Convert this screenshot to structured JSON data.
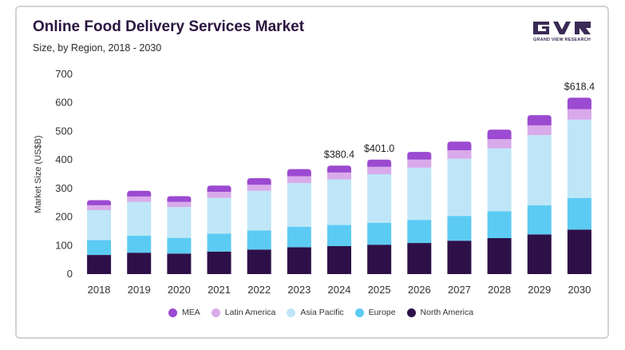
{
  "header": {
    "title": "Online Food Delivery Services Market",
    "subtitle": "Size, by Region, 2018 - 2030"
  },
  "logo": {
    "text": "GRAND VIEW RESEARCH"
  },
  "chart_data": {
    "type": "bar",
    "stacked": true,
    "categories": [
      "2018",
      "2019",
      "2020",
      "2021",
      "2022",
      "2023",
      "2024",
      "2025",
      "2026",
      "2027",
      "2028",
      "2029",
      "2030"
    ],
    "ylabel": "Market Size (US$B)",
    "xlabel": "",
    "ylim": [
      0,
      700
    ],
    "yticks": [
      0,
      100,
      200,
      300,
      400,
      500,
      600,
      700
    ],
    "grid": false,
    "legend_position": "bottom",
    "series": [
      {
        "name": "North America",
        "color": "#2e1048",
        "values": [
          67,
          75,
          72,
          79,
          86,
          94,
          98,
          103,
          109,
          117,
          126,
          139,
          156
        ]
      },
      {
        "name": "Europe",
        "color": "#5ccbf3",
        "values": [
          52,
          60,
          55,
          63,
          67,
          72,
          74,
          77,
          81,
          87,
          94,
          102,
          111
        ]
      },
      {
        "name": "Asia Pacific",
        "color": "#bfe6f8",
        "values": [
          105,
          118,
          108,
          125,
          139,
          153,
          160,
          170,
          183,
          200,
          221,
          246,
          274
        ]
      },
      {
        "name": "Latin America",
        "color": "#d9aaea",
        "values": [
          17,
          19,
          18,
          21,
          21,
          24,
          24,
          26,
          28,
          30,
          32,
          34,
          37
        ]
      },
      {
        "name": "MEA",
        "color": "#9b4ad1",
        "values": [
          18,
          20,
          20,
          22,
          23,
          25,
          24,
          25,
          27,
          30,
          33,
          36,
          40
        ]
      }
    ],
    "annotations": [
      {
        "category": "2024",
        "text": "$380.4"
      },
      {
        "category": "2025",
        "text": "$401.0"
      },
      {
        "category": "2030",
        "text": "$618.4"
      }
    ],
    "legend_order": [
      "MEA",
      "Latin America",
      "Asia Pacific",
      "Europe",
      "North America"
    ]
  }
}
